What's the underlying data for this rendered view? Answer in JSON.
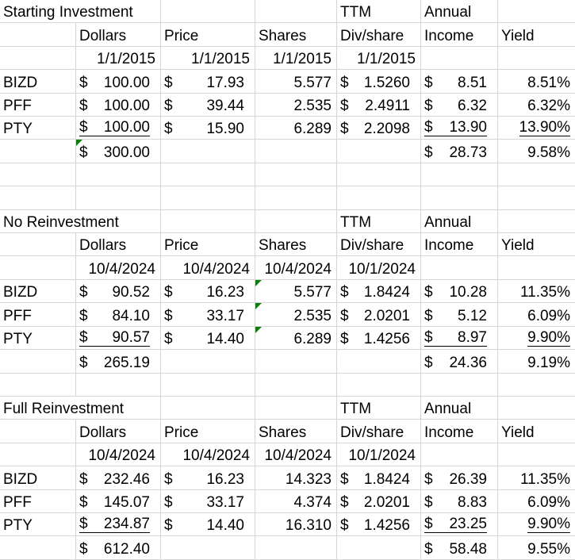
{
  "cur": "$",
  "sections": [
    {
      "title": "Starting Investment",
      "ttm_label": "TTM",
      "annual_label": "Annual",
      "headers": {
        "dollars": "Dollars",
        "price": "Price",
        "shares": "Shares",
        "divshare": "Div/share",
        "income": "Income",
        "yld": "Yield"
      },
      "dates": {
        "dollars": "1/1/2015",
        "price": "1/1/2015",
        "shares": "1/1/2015",
        "divshare": "1/1/2015"
      },
      "rows": [
        {
          "ticker": "BIZD",
          "dollars": "100.00",
          "price": "17.93",
          "shares": "5.577",
          "divshare": "1.5260",
          "income": "8.51",
          "yld": "8.51%"
        },
        {
          "ticker": "PFF",
          "dollars": "100.00",
          "price": "39.44",
          "shares": "2.535",
          "divshare": "2.4911",
          "income": "6.32",
          "yld": "6.32%"
        },
        {
          "ticker": "PTY",
          "dollars": "100.00",
          "price": "15.90",
          "shares": "6.289",
          "divshare": "2.2098",
          "income": "13.90",
          "yld": "13.90%"
        }
      ],
      "total": {
        "dollars": "300.00",
        "income": "28.73",
        "yld": "9.58%"
      }
    },
    {
      "title": "No Reinvestment",
      "ttm_label": "TTM",
      "annual_label": "Annual",
      "headers": {
        "dollars": "Dollars",
        "price": "Price",
        "shares": "Shares",
        "divshare": "Div/share",
        "income": "Income",
        "yld": "Yield"
      },
      "dates": {
        "dollars": "10/4/2024",
        "price": "10/4/2024",
        "shares": "10/4/2024",
        "divshare": "10/1/2024"
      },
      "rows": [
        {
          "ticker": "BIZD",
          "dollars": "90.52",
          "price": "16.23",
          "shares": "5.577",
          "divshare": "1.8424",
          "income": "10.28",
          "yld": "11.35%"
        },
        {
          "ticker": "PFF",
          "dollars": "84.10",
          "price": "33.17",
          "shares": "2.535",
          "divshare": "2.0201",
          "income": "5.12",
          "yld": "6.09%"
        },
        {
          "ticker": "PTY",
          "dollars": "90.57",
          "price": "14.40",
          "shares": "6.289",
          "divshare": "1.4256",
          "income": "8.97",
          "yld": "9.90%"
        }
      ],
      "total": {
        "dollars": "265.19",
        "income": "24.36",
        "yld": "9.19%"
      }
    },
    {
      "title": "Full Reinvestment",
      "ttm_label": "TTM",
      "annual_label": "Annual",
      "headers": {
        "dollars": "Dollars",
        "price": "Price",
        "shares": "Shares",
        "divshare": "Div/share",
        "income": "Income",
        "yld": "Yield"
      },
      "dates": {
        "dollars": "10/4/2024",
        "price": "10/4/2024",
        "shares": "10/4/2024",
        "divshare": "10/1/2024"
      },
      "rows": [
        {
          "ticker": "BIZD",
          "dollars": "232.46",
          "price": "16.23",
          "shares": "14.323",
          "divshare": "1.8424",
          "income": "26.39",
          "yld": "11.35%"
        },
        {
          "ticker": "PFF",
          "dollars": "145.07",
          "price": "33.17",
          "shares": "4.374",
          "divshare": "2.0201",
          "income": "8.83",
          "yld": "6.09%"
        },
        {
          "ticker": "PTY",
          "dollars": "234.87",
          "price": "14.40",
          "shares": "16.310",
          "divshare": "1.4256",
          "income": "23.25",
          "yld": "9.90%"
        }
      ],
      "total": {
        "dollars": "612.40",
        "income": "58.48",
        "yld": "9.55%"
      }
    }
  ]
}
